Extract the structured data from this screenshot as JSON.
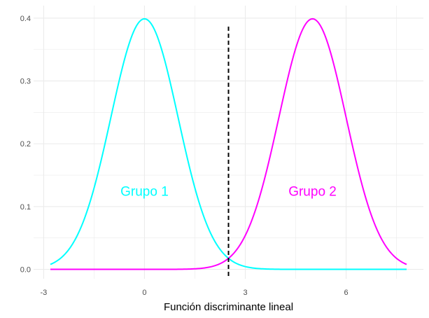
{
  "chart_data": {
    "type": "line",
    "title": "",
    "xlabel": "Función discriminante lineal",
    "ylabel": "",
    "xlim": [
      -3.3,
      8.3
    ],
    "ylim": [
      -0.015,
      0.42
    ],
    "x_ticks": [
      -3,
      0,
      3,
      6
    ],
    "x_tick_labels": [
      "-3",
      "0",
      "3",
      "6"
    ],
    "y_ticks": [
      0.0,
      0.1,
      0.2,
      0.3,
      0.4
    ],
    "y_tick_labels": [
      "0.0",
      "0.1",
      "0.2",
      "0.3",
      "0.4"
    ],
    "grid": true,
    "x_range": [
      -2.8,
      7.8
    ],
    "series": [
      {
        "name": "Grupo 1",
        "distribution": "normal",
        "mean": 0,
        "sd": 1,
        "color": "#00FFFF"
      },
      {
        "name": "Grupo 2",
        "distribution": "normal",
        "mean": 5,
        "sd": 1,
        "color": "#FF00FF"
      }
    ],
    "annotations": [
      {
        "text": "Grupo 1",
        "x": 0,
        "y": 0.125,
        "color": "#00FFFF"
      },
      {
        "text": "Grupo 2",
        "x": 5,
        "y": 0.125,
        "color": "#FF00FF"
      }
    ],
    "vline": {
      "x": 2.5,
      "style": "dashed",
      "color": "#000000"
    }
  }
}
